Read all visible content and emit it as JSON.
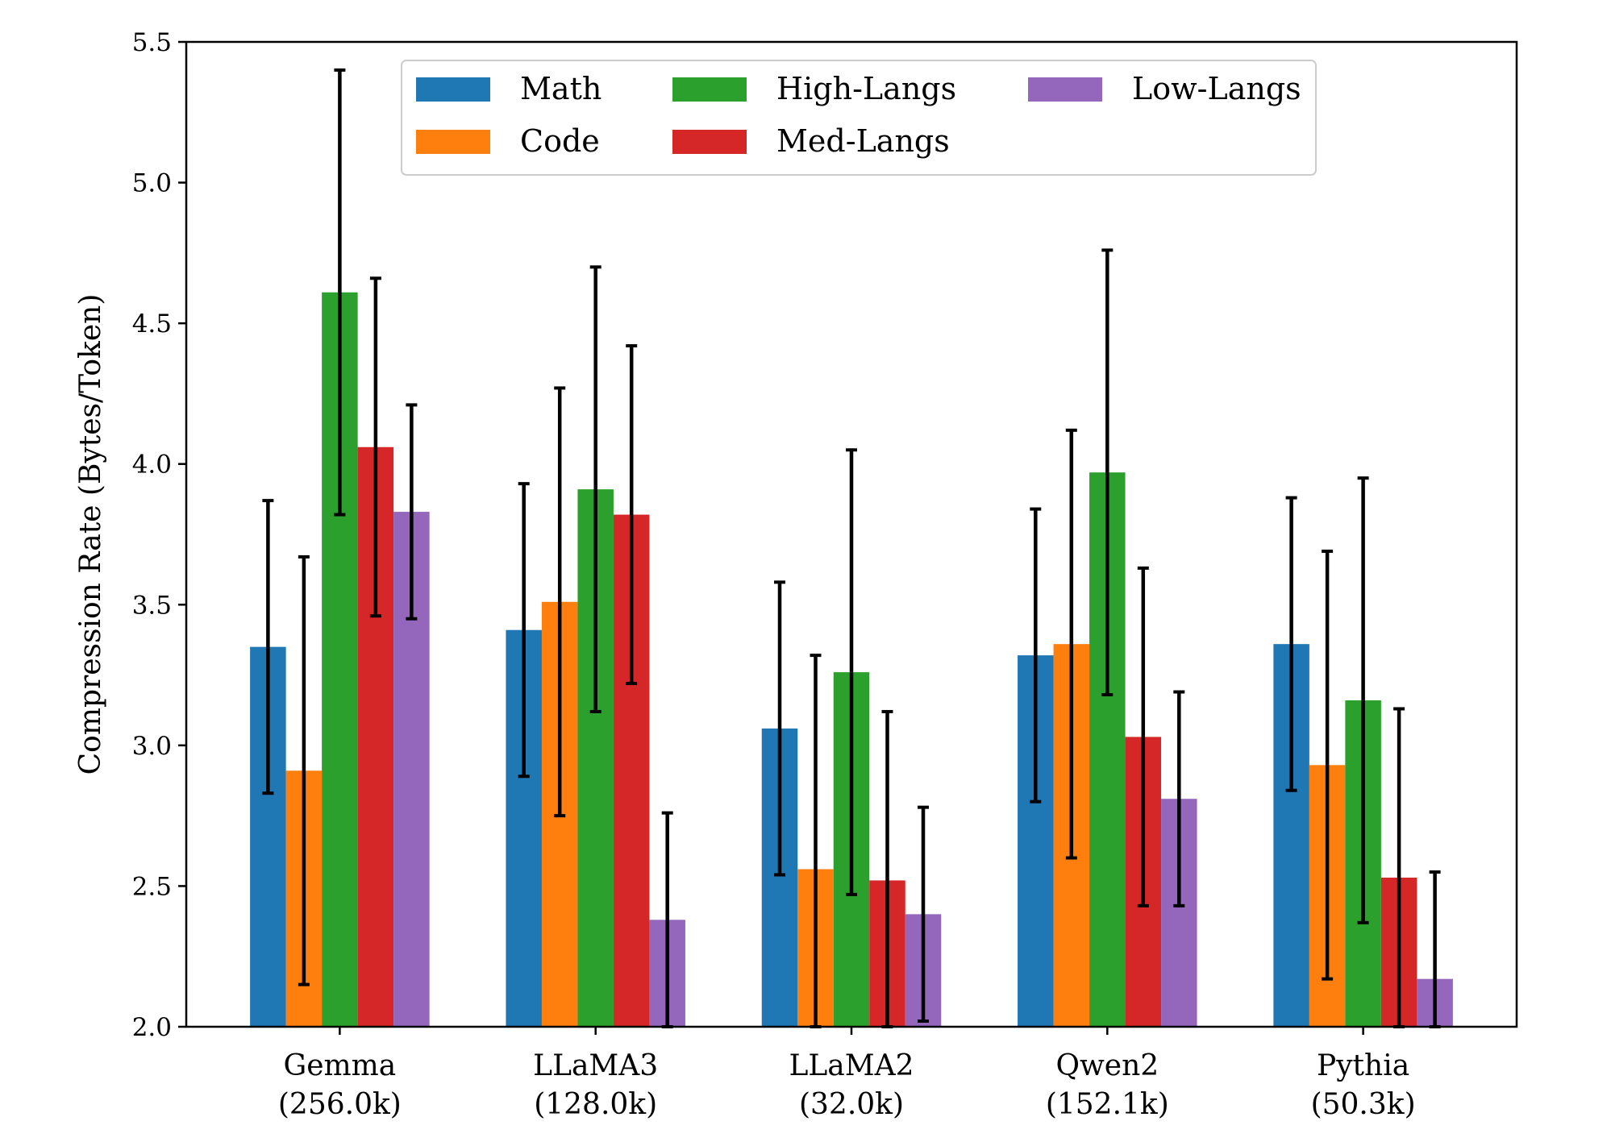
{
  "chart_data": {
    "type": "bar",
    "title": "",
    "xlabel": "",
    "ylabel": "Compression Rate (Bytes/Token)",
    "ylim": [
      2.0,
      5.5
    ],
    "yticks": [
      "2.0",
      "2.5",
      "3.0",
      "3.5",
      "4.0",
      "4.5",
      "5.0",
      "5.5"
    ],
    "grid": false,
    "legend_position": "top",
    "categories": [
      {
        "name": "Gemma",
        "vocab": "(256.0k)"
      },
      {
        "name": "LLaMA3",
        "vocab": "(128.0k)"
      },
      {
        "name": "LLaMA2",
        "vocab": "(32.0k)"
      },
      {
        "name": "Qwen2",
        "vocab": "(152.1k)"
      },
      {
        "name": "Pythia",
        "vocab": "(50.3k)"
      }
    ],
    "series": [
      {
        "name": "Math",
        "color": "#1f77b4",
        "values": [
          3.35,
          3.41,
          3.06,
          3.32,
          3.36
        ],
        "error": [
          0.52,
          0.52,
          0.52,
          0.52,
          0.52
        ]
      },
      {
        "name": "Code",
        "color": "#ff7f0e",
        "values": [
          2.91,
          3.51,
          2.56,
          3.36,
          2.93
        ],
        "error": [
          0.76,
          0.76,
          0.76,
          0.76,
          0.76
        ]
      },
      {
        "name": "High-Langs",
        "color": "#2ca02c",
        "values": [
          4.61,
          3.91,
          3.26,
          3.97,
          3.16
        ],
        "error": [
          0.79,
          0.79,
          0.79,
          0.79,
          0.79
        ]
      },
      {
        "name": "Med-Langs",
        "color": "#d62728",
        "values": [
          4.06,
          3.82,
          2.52,
          3.03,
          2.53
        ],
        "error": [
          0.6,
          0.6,
          0.6,
          0.6,
          0.6
        ]
      },
      {
        "name": "Low-Langs",
        "color": "#9467bd",
        "values": [
          3.83,
          2.38,
          2.4,
          2.81,
          2.17
        ],
        "error": [
          0.38,
          0.38,
          0.38,
          0.38,
          0.38
        ]
      }
    ]
  }
}
